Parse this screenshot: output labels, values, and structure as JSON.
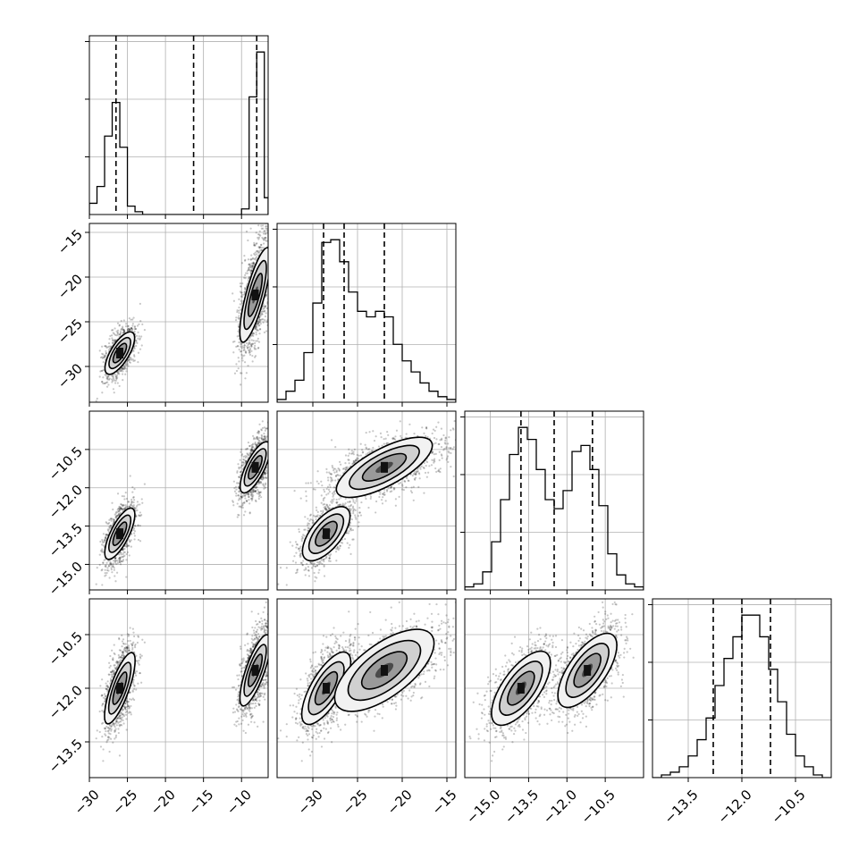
{
  "chart_data": {
    "type": "corner",
    "params": [
      {
        "range": [
          -30,
          -6.5
        ],
        "ticks": [
          -30,
          -25,
          -20,
          -15,
          -10
        ],
        "tick_labels": [
          "−30",
          "−25",
          "−20",
          "−15",
          "−10"
        ],
        "quantiles": [
          -26.5,
          -16.3,
          -8.0
        ],
        "hist_edges": [
          -30,
          -29,
          -28,
          -27,
          -26,
          -25,
          -24,
          -23,
          -22,
          -21,
          -20,
          -19,
          -18,
          -17,
          -16,
          -15,
          -14,
          -13,
          -12,
          -11,
          -10,
          -9,
          -8,
          -7,
          -6.5
        ],
        "hist_counts": [
          4,
          10,
          28,
          40,
          24,
          3,
          1,
          0,
          0,
          0,
          0,
          0,
          0,
          0,
          0,
          0,
          0,
          0,
          0,
          0,
          2,
          42,
          58,
          6
        ]
      },
      {
        "range": [
          -34,
          -14
        ],
        "ticks": [
          -30,
          -25,
          -20,
          -15
        ],
        "tick_labels": [
          "−30",
          "−25",
          "−20",
          "−15"
        ],
        "quantiles": [
          -28.8,
          -26.5,
          -22.0
        ],
        "hist_edges": [
          -34,
          -33,
          -32,
          -31,
          -30,
          -29,
          -28,
          -27,
          -26,
          -25,
          -24,
          -23,
          -22,
          -21,
          -20,
          -19,
          -18,
          -17,
          -16,
          -15,
          -14
        ],
        "hist_counts": [
          1,
          4,
          8,
          18,
          36,
          58,
          59,
          51,
          40,
          33,
          31,
          33,
          31,
          21,
          15,
          11,
          7,
          4,
          2,
          1
        ]
      },
      {
        "range": [
          -16,
          -9
        ],
        "ticks": [
          -15.0,
          -13.5,
          -12.0,
          -10.5
        ],
        "tick_labels": [
          "−15.0",
          "−13.5",
          "−12.0",
          "−10.5"
        ],
        "quantiles": [
          -13.8,
          -12.5,
          -11.0
        ],
        "hist_edges": [
          -16,
          -15.65,
          -15.3,
          -14.95,
          -14.6,
          -14.25,
          -13.9,
          -13.55,
          -13.2,
          -12.85,
          -12.5,
          -12.15,
          -11.8,
          -11.45,
          -11.1,
          -10.75,
          -10.4,
          -10.05,
          -9.7,
          -9.35,
          -9
        ],
        "hist_counts": [
          1,
          2,
          6,
          16,
          30,
          45,
          54,
          50,
          40,
          30,
          27,
          33,
          46,
          48,
          40,
          28,
          12,
          5,
          2,
          1
        ]
      },
      {
        "range": [
          -14.5,
          -9.5
        ],
        "ticks": [
          -13.5,
          -12.0,
          -10.5
        ],
        "tick_labels": [
          "−13.5",
          "−12.0",
          "−10.5"
        ],
        "quantiles": [
          -12.8,
          -12.0,
          -11.2
        ],
        "hist_edges": [
          -14.5,
          -14.25,
          -14,
          -13.75,
          -13.5,
          -13.25,
          -13,
          -12.75,
          -12.5,
          -12.25,
          -12,
          -11.75,
          -11.5,
          -11.25,
          -11,
          -10.75,
          -10.5,
          -10.25,
          -10,
          -9.75,
          -9.5
        ],
        "hist_counts": [
          0,
          1,
          2,
          4,
          8,
          14,
          22,
          34,
          44,
          52,
          60,
          60,
          52,
          40,
          28,
          16,
          8,
          4,
          1,
          0
        ]
      }
    ],
    "histogram_yticks": 3,
    "mode_a": [
      -26.0,
      -28.5,
      -13.8,
      -12.0
    ],
    "mode_b": [
      -8.2,
      -22.0,
      -11.2,
      -11.5
    ],
    "mode_sd": [
      1.0,
      2.2,
      0.6,
      0.6
    ],
    "mode_weight_a": 0.45
  }
}
